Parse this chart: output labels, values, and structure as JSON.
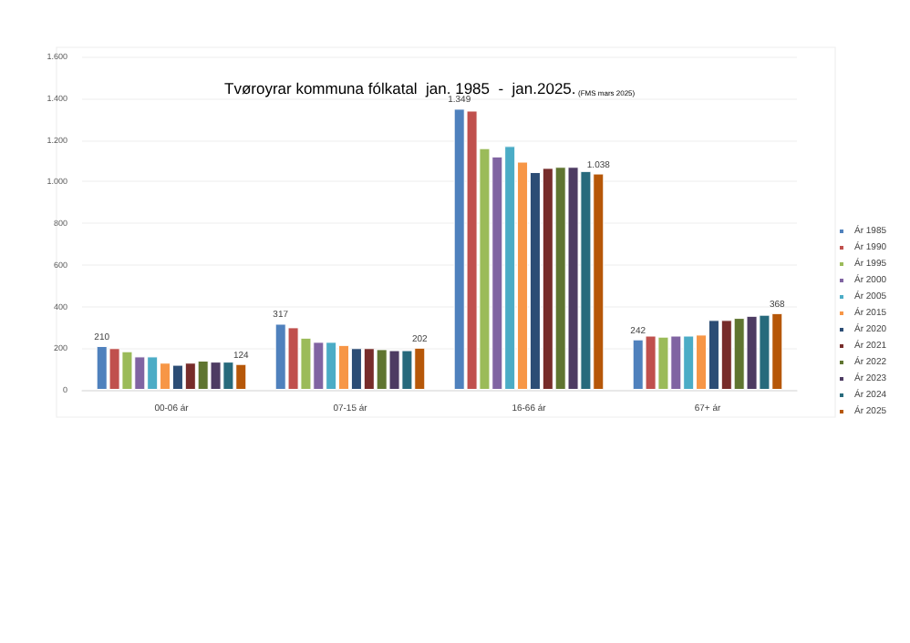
{
  "chart_data": {
    "type": "bar",
    "title": "Tvøroyrar kommuna fólkatal  jan. 1985  -  jan.2025.",
    "subtitle": "(FMS mars 2025)",
    "categories": [
      "00-06 ár",
      "07-15 ár",
      "16-66 ár",
      "67+ ár"
    ],
    "series": [
      {
        "name": "Ár 1985",
        "color": "#4f81bd",
        "values": [
          210,
          317,
          1349,
          242
        ],
        "value_labels": [
          "210",
          "317",
          "1.349",
          "242"
        ]
      },
      {
        "name": "Ár 1990",
        "color": "#c0504d",
        "values": [
          200,
          300,
          1340,
          260
        ]
      },
      {
        "name": "Ár 1995",
        "color": "#9bbb59",
        "values": [
          185,
          250,
          1160,
          255
        ]
      },
      {
        "name": "Ár 2000",
        "color": "#8064a2",
        "values": [
          160,
          230,
          1120,
          260
        ]
      },
      {
        "name": "Ár 2005",
        "color": "#4bacc6",
        "values": [
          160,
          230,
          1170,
          260
        ]
      },
      {
        "name": "Ár 2015",
        "color": "#f79646",
        "values": [
          130,
          215,
          1095,
          265
        ]
      },
      {
        "name": "Ár 2020",
        "color": "#2c4d75",
        "values": [
          120,
          200,
          1045,
          335
        ]
      },
      {
        "name": "Ár 2021",
        "color": "#772c2a",
        "values": [
          130,
          200,
          1065,
          335
        ]
      },
      {
        "name": "Ár 2022",
        "color": "#5f7530",
        "values": [
          140,
          195,
          1070,
          345
        ]
      },
      {
        "name": "Ár 2023",
        "color": "#4d3b62",
        "values": [
          135,
          190,
          1070,
          355
        ]
      },
      {
        "name": "Ár 2024",
        "color": "#276a7c",
        "values": [
          135,
          190,
          1050,
          360
        ]
      },
      {
        "name": "Ár 2025",
        "color": "#b65708",
        "values": [
          124,
          202,
          1038,
          368
        ],
        "value_labels": [
          "124",
          "202",
          "1.038",
          "368"
        ]
      }
    ],
    "ylim": [
      0,
      1600
    ],
    "yticks": [
      0,
      {
        "value": 200,
        "label": "200"
      },
      {
        "value": 400,
        "label": "400"
      },
      {
        "value": 600,
        "label": "600"
      },
      {
        "value": 800,
        "label": "800"
      },
      {
        "value": 1000,
        "label": "1.000"
      },
      {
        "value": 1200,
        "label": "1.200"
      },
      {
        "value": 1400,
        "label": "1.400"
      },
      {
        "value": 1600,
        "label": "1.600"
      }
    ],
    "grid": "y",
    "legend": "right"
  }
}
